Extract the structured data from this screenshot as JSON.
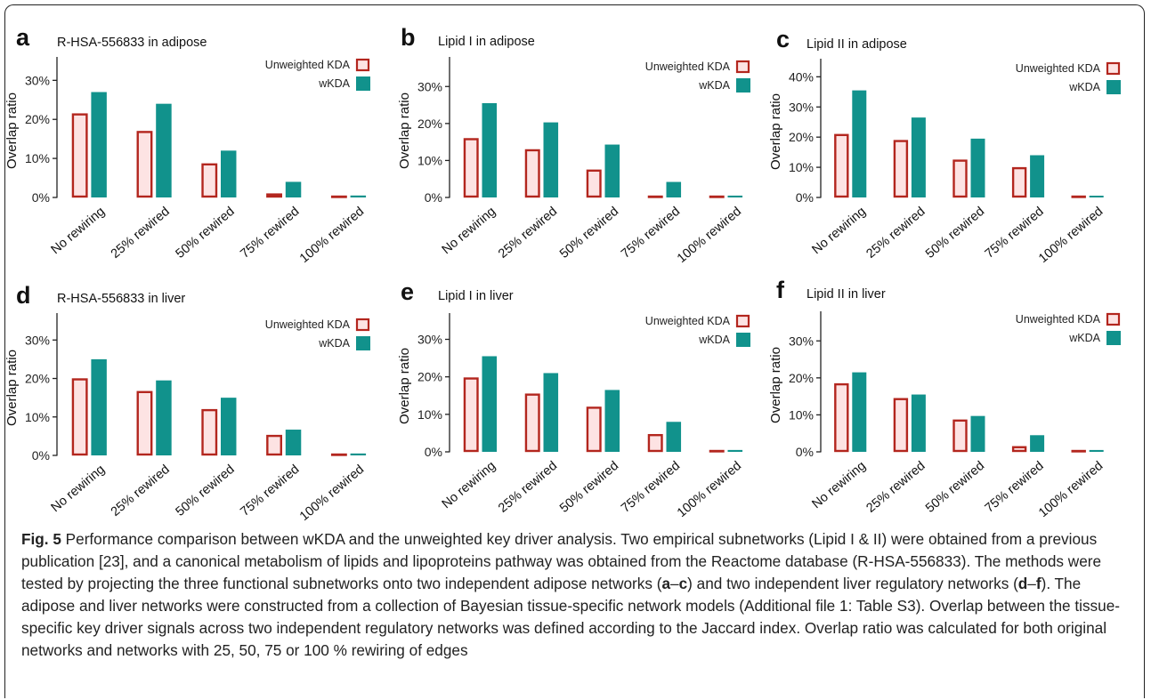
{
  "colors": {
    "unweighted_fill": "#fde3e3",
    "unweighted_stroke": "#b3261e",
    "wkda_fill": "#11928c",
    "axis": "#222222"
  },
  "chart_data": [
    {
      "type": "bar",
      "panel": "a",
      "title": "R-HSA-556833 in adipose",
      "ylabel": "Overlap ratio",
      "categories": [
        "No rewiring",
        "25% rewired",
        "50% rewired",
        "75% rewired",
        "100% rewired"
      ],
      "yticks": [
        "0%",
        "10%",
        "20%",
        "30%"
      ],
      "ytick_values": [
        0,
        10,
        20,
        30
      ],
      "ylim": [
        0,
        36
      ],
      "series": [
        {
          "name": "Unweighted KDA",
          "values": [
            21.5,
            17,
            8.7,
            1,
            0.2
          ]
        },
        {
          "name": "wKDA",
          "values": [
            27,
            24,
            12,
            4,
            0.5
          ]
        }
      ]
    },
    {
      "type": "bar",
      "panel": "b",
      "title": "Lipid I in adipose",
      "ylabel": "Overlap ratio",
      "categories": [
        "No rewiring",
        "25% rewired",
        "50% rewired",
        "75% rewired",
        "100% rewired"
      ],
      "yticks": [
        "0%",
        "10%",
        "20%",
        "30%"
      ],
      "ytick_values": [
        0,
        10,
        20,
        30
      ],
      "ylim": [
        0,
        38
      ],
      "series": [
        {
          "name": "Unweighted KDA",
          "values": [
            16,
            13,
            7.5,
            0.3,
            0.2
          ]
        },
        {
          "name": "wKDA",
          "values": [
            25.5,
            20.3,
            14.3,
            4.2,
            0.5
          ]
        }
      ]
    },
    {
      "type": "bar",
      "panel": "c",
      "title": "Lipid II in adipose",
      "ylabel": "Overlap ratio",
      "categories": [
        "No rewiring",
        "25% rewired",
        "50% rewired",
        "75% rewired",
        "100% rewired"
      ],
      "yticks": [
        "0%",
        "10%",
        "20%",
        "30%",
        "40%"
      ],
      "ytick_values": [
        0,
        10,
        20,
        30,
        40
      ],
      "ylim": [
        0,
        46
      ],
      "series": [
        {
          "name": "Unweighted KDA",
          "values": [
            21,
            19,
            12.5,
            10,
            0.3
          ]
        },
        {
          "name": "wKDA",
          "values": [
            35.5,
            26.5,
            19.5,
            14,
            0.5
          ]
        }
      ]
    },
    {
      "type": "bar",
      "panel": "d",
      "title": "R-HSA-556833 in liver",
      "ylabel": "Overlap ratio",
      "categories": [
        "No rewiring",
        "25% rewired",
        "50% rewired",
        "75% rewired",
        "100% rewired"
      ],
      "yticks": [
        "0%",
        "10%",
        "20%",
        "30%"
      ],
      "ytick_values": [
        0,
        10,
        20,
        30
      ],
      "ylim": [
        0,
        37
      ],
      "series": [
        {
          "name": "Unweighted KDA",
          "values": [
            20,
            16.7,
            12,
            5.3,
            0.3
          ]
        },
        {
          "name": "wKDA",
          "values": [
            25,
            19.5,
            15,
            6.7,
            0.5
          ]
        }
      ]
    },
    {
      "type": "bar",
      "panel": "e",
      "title": "Lipid I in liver",
      "ylabel": "Overlap ratio",
      "categories": [
        "No rewiring",
        "25% rewired",
        "50% rewired",
        "75% rewired",
        "100% rewired"
      ],
      "yticks": [
        "0%",
        "10%",
        "20%",
        "30%"
      ],
      "ytick_values": [
        0,
        10,
        20,
        30
      ],
      "ylim": [
        0,
        37
      ],
      "series": [
        {
          "name": "Unweighted KDA",
          "values": [
            19.8,
            15.5,
            12,
            4.7,
            0.2
          ]
        },
        {
          "name": "wKDA",
          "values": [
            25.5,
            21,
            16.5,
            8,
            0.5
          ]
        }
      ]
    },
    {
      "type": "bar",
      "panel": "f",
      "title": "Lipid II in liver",
      "ylabel": "Overlap ratio",
      "categories": [
        "No rewiring",
        "25% rewired",
        "50% rewired",
        "75% rewired",
        "100% rewired"
      ],
      "yticks": [
        "0%",
        "10%",
        "20%",
        "30%"
      ],
      "ytick_values": [
        0,
        10,
        20,
        30
      ],
      "ylim": [
        0,
        38
      ],
      "series": [
        {
          "name": "Unweighted KDA",
          "values": [
            18.5,
            14.5,
            8.7,
            1.5,
            0.2
          ]
        },
        {
          "name": "wKDA",
          "values": [
            21.5,
            15.5,
            9.7,
            4.5,
            0.5
          ]
        }
      ]
    }
  ],
  "caption": {
    "label": "Fig. 5",
    "t1": " Performance comparison between wKDA and the unweighted key driver analysis. Two empirical subnetworks (Lipid I & II) were obtained from a previous publication [23], and a canonical metabolism of lipids and lipoproteins pathway was obtained from the Reactome database (R-HSA-556833). The methods were tested by projecting the three functional subnetworks onto two independent adipose networks (",
    "r1a": "a",
    "r1sep": "–",
    "r1b": "c",
    "t2": ") and two independent liver regulatory networks (",
    "r2a": "d",
    "r2sep": "–",
    "r2b": "f",
    "t3": "). The adipose and liver networks were constructed from a collection of Bayesian tissue-specific network models (Additional file 1: Table S3). Overlap between the tissue-specific key driver signals across two independent regulatory networks was defined according to the Jaccard index. Overlap ratio was calculated for both original networks and networks with 25, 50, 75 or 100 % rewiring of edges"
  }
}
